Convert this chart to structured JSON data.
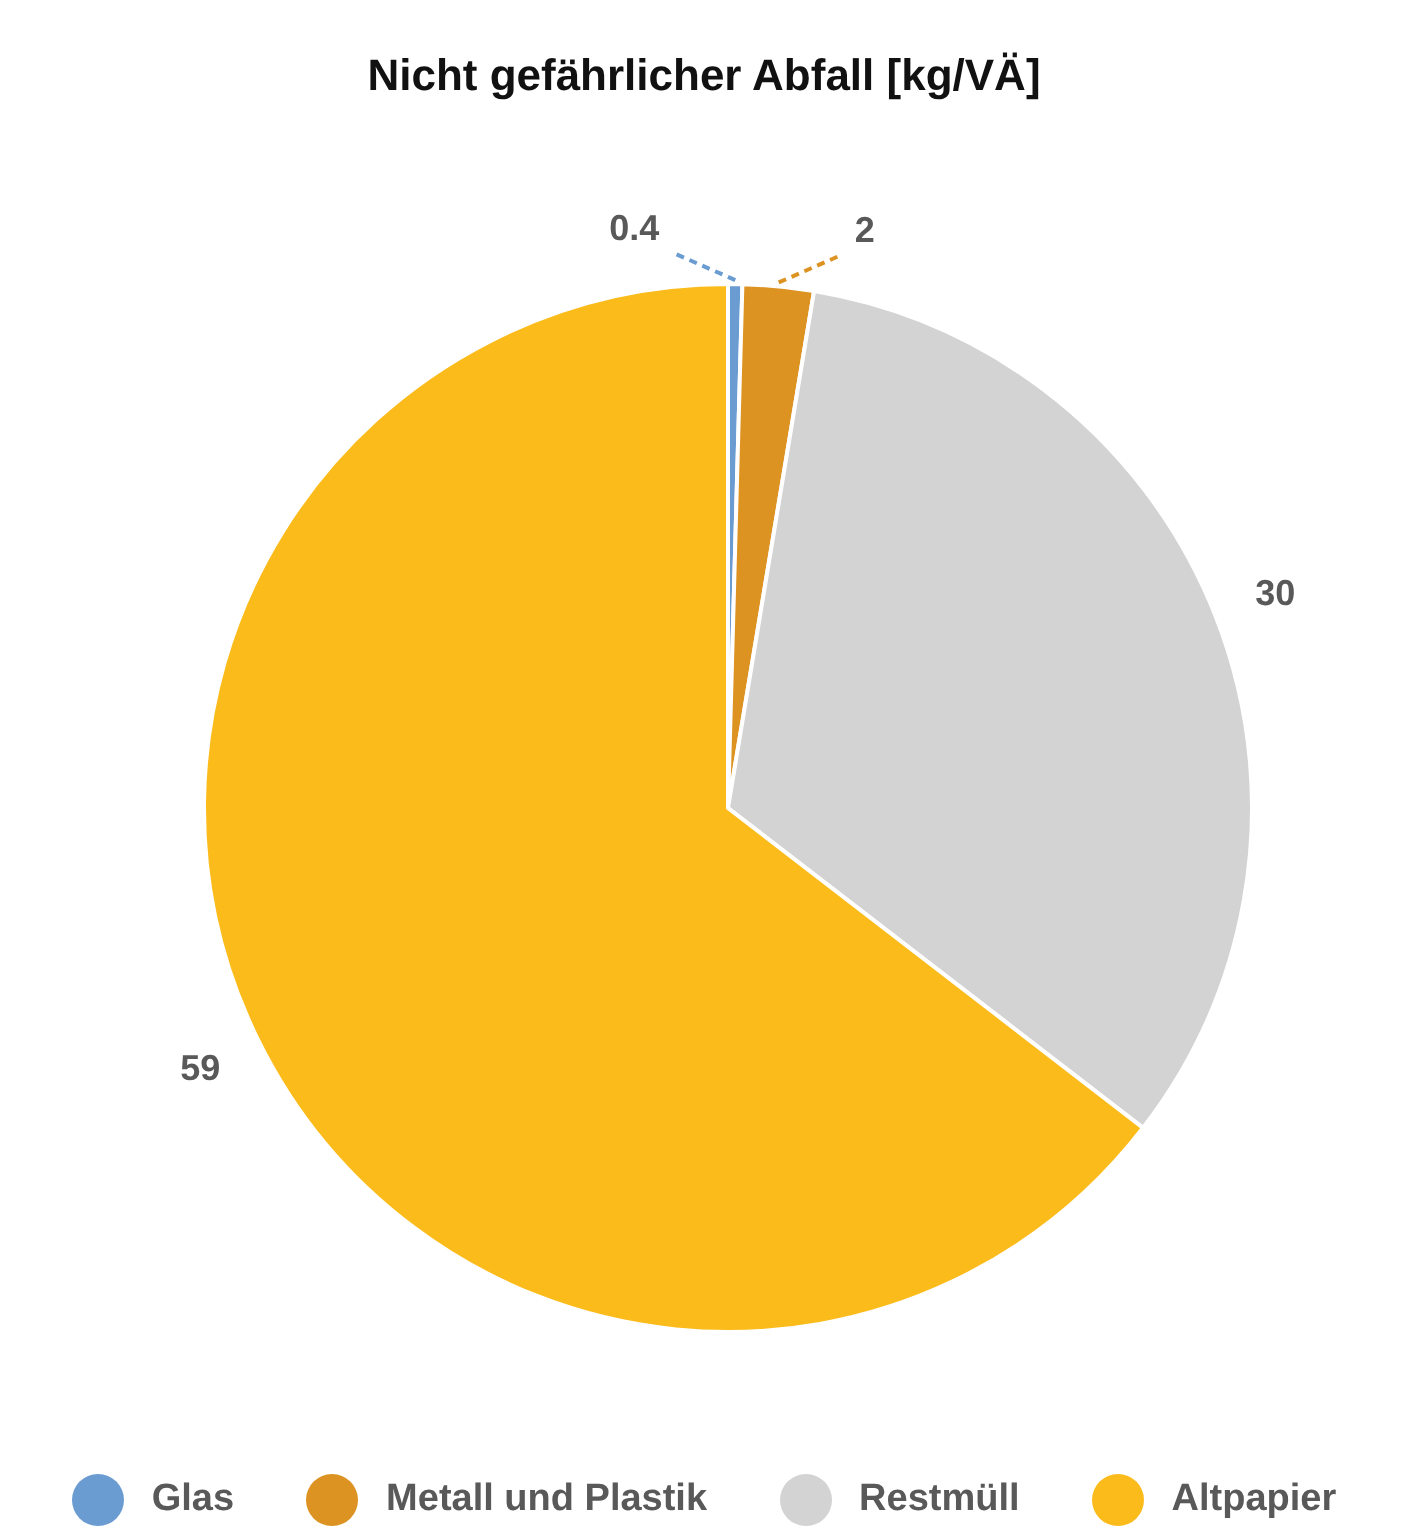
{
  "chart_data": {
    "type": "pie",
    "title": "Nicht gefährlicher Abfall [kg/VÄ]",
    "categories": [
      "Glas",
      "Metall und Plastik",
      "Restmüll",
      "Altpapier"
    ],
    "values": [
      0.4,
      2,
      30,
      59
    ],
    "colors": [
      "#6a9bd1",
      "#dc9322",
      "#d3d3d3",
      "#fbbc1b"
    ],
    "data_labels": true,
    "legend": "bottom"
  }
}
